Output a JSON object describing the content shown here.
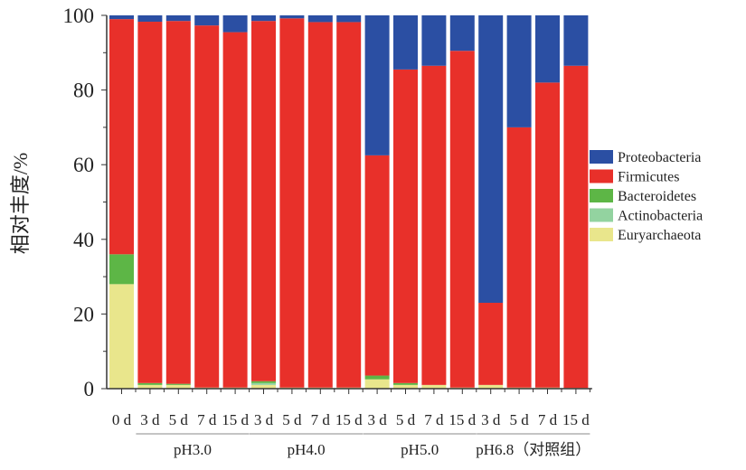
{
  "chart_data": {
    "type": "bar",
    "stacked": true,
    "ylabel": "相对丰度/%",
    "ylim": [
      0,
      100
    ],
    "yticks": [
      0,
      20,
      40,
      60,
      80,
      100
    ],
    "grid": false,
    "legend_position": "right",
    "categories": [
      "0 d",
      "3 d",
      "5 d",
      "7 d",
      "15 d",
      "3 d",
      "5 d",
      "7 d",
      "15 d",
      "3 d",
      "5 d",
      "7 d",
      "15 d",
      "3 d",
      "5 d",
      "7 d",
      "15 d"
    ],
    "groups": [
      {
        "label": "pH3.0",
        "start": 1,
        "end": 4
      },
      {
        "label": "pH4.0",
        "start": 5,
        "end": 8
      },
      {
        "label": "pH5.0",
        "start": 9,
        "end": 12
      },
      {
        "label": "pH6.8（对照组）",
        "start": 13,
        "end": 16
      }
    ],
    "series": [
      {
        "name": "Euryarchaeota",
        "color": "#e9e68c",
        "values": [
          28,
          1,
          1,
          0.3,
          0.3,
          1,
          0.3,
          0.3,
          0.3,
          2.5,
          1,
          1,
          0.3,
          1,
          0.3,
          0.3,
          0.2
        ]
      },
      {
        "name": "Actinobacteria",
        "color": "#93d3a0",
        "values": [
          0,
          0,
          0,
          0,
          0,
          0.5,
          0,
          0,
          0,
          0,
          0,
          0,
          0,
          0,
          0,
          0,
          0
        ]
      },
      {
        "name": "Bacteroidetes",
        "color": "#5db646",
        "values": [
          8,
          0.5,
          0.3,
          0,
          0,
          0.5,
          0,
          0,
          0,
          1,
          0.5,
          0,
          0,
          0,
          0,
          0,
          0
        ]
      },
      {
        "name": "Firmicutes",
        "color": "#e8302a",
        "values": [
          63,
          96.8,
          97.2,
          97,
          95.2,
          96.5,
          98.9,
          97.9,
          97.9,
          59,
          84,
          85.5,
          90.2,
          22,
          69.7,
          81.7,
          86.3
        ]
      },
      {
        "name": "Proteobacteria",
        "color": "#2b4fa3",
        "values": [
          1,
          1.7,
          1.5,
          2.7,
          4.5,
          1.5,
          0.8,
          1.8,
          1.8,
          37.5,
          14.5,
          13.5,
          9.5,
          77,
          30,
          18,
          13.5
        ]
      }
    ]
  }
}
